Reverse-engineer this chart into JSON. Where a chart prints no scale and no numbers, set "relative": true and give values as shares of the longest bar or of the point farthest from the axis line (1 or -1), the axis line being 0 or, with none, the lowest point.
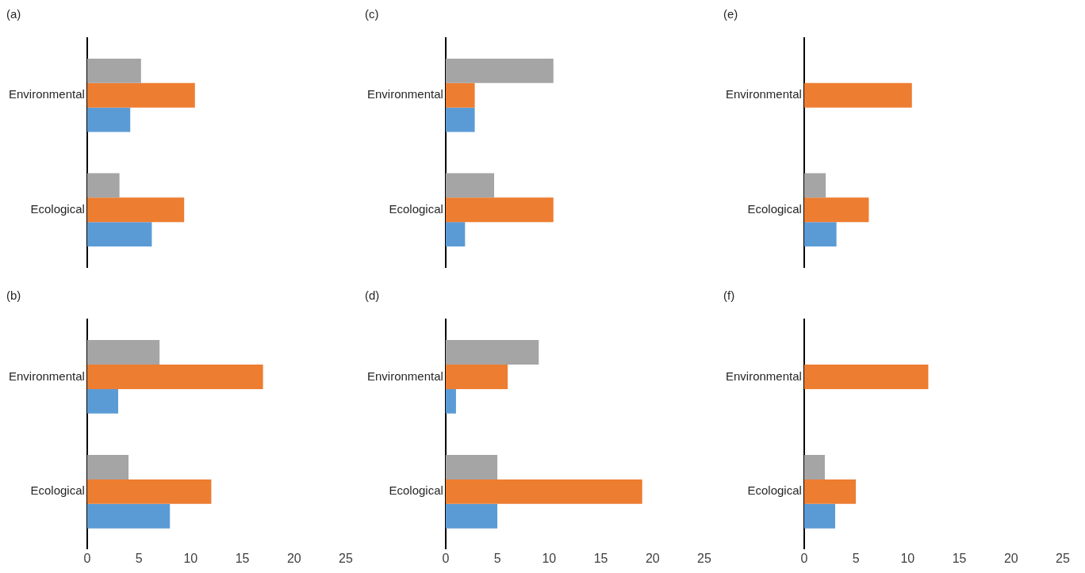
{
  "chart_data": [
    {
      "type": "bar",
      "orientation": "horizontal",
      "relative": true,
      "title": "(a)",
      "categories": [
        "Environmental",
        "Ecological"
      ],
      "series": [
        {
          "color": "#a5a5a5",
          "values": [
            0.5,
            0.3
          ]
        },
        {
          "color": "#ed7d31",
          "values": [
            1.0,
            0.9
          ]
        },
        {
          "color": "#5b9bd5",
          "values": [
            0.4,
            0.6
          ]
        }
      ]
    },
    {
      "type": "bar",
      "orientation": "horizontal",
      "relative": true,
      "title": "(c)",
      "categories": [
        "Environmental",
        "Ecological"
      ],
      "series": [
        {
          "color": "#a5a5a5",
          "values": [
            1.0,
            0.45
          ]
        },
        {
          "color": "#ed7d31",
          "values": [
            0.27,
            1.0
          ]
        },
        {
          "color": "#5b9bd5",
          "values": [
            0.27,
            0.18
          ]
        }
      ]
    },
    {
      "type": "bar",
      "orientation": "horizontal",
      "relative": true,
      "title": "(e)",
      "categories": [
        "Environmental",
        "Ecological"
      ],
      "series": [
        {
          "color": "#a5a5a5",
          "values": [
            0,
            0.2
          ]
        },
        {
          "color": "#ed7d31",
          "values": [
            1.0,
            0.6
          ]
        },
        {
          "color": "#5b9bd5",
          "values": [
            0,
            0.3
          ]
        }
      ]
    },
    {
      "type": "bar",
      "orientation": "horizontal",
      "title": "(b)",
      "categories": [
        "Environmental",
        "Ecological"
      ],
      "xlim": [
        0,
        25
      ],
      "xticks": [
        0,
        5,
        10,
        15,
        20,
        25
      ],
      "series": [
        {
          "color": "#a5a5a5",
          "values": [
            7,
            4
          ]
        },
        {
          "color": "#ed7d31",
          "values": [
            17,
            12
          ]
        },
        {
          "color": "#5b9bd5",
          "values": [
            3,
            8
          ]
        }
      ]
    },
    {
      "type": "bar",
      "orientation": "horizontal",
      "title": "(d)",
      "categories": [
        "Environmental",
        "Ecological"
      ],
      "xlim": [
        0,
        25
      ],
      "xticks": [
        0,
        5,
        10,
        15,
        20,
        25
      ],
      "series": [
        {
          "color": "#a5a5a5",
          "values": [
            9,
            5
          ]
        },
        {
          "color": "#ed7d31",
          "values": [
            6,
            19
          ]
        },
        {
          "color": "#5b9bd5",
          "values": [
            1,
            5
          ]
        }
      ]
    },
    {
      "type": "bar",
      "orientation": "horizontal",
      "title": "(f)",
      "categories": [
        "Environmental",
        "Ecological"
      ],
      "xlim": [
        0,
        25
      ],
      "xticks": [
        0,
        5,
        10,
        15,
        20,
        25
      ],
      "series": [
        {
          "color": "#a5a5a5",
          "values": [
            0,
            2
          ]
        },
        {
          "color": "#ed7d31",
          "values": [
            12,
            5
          ]
        },
        {
          "color": "#5b9bd5",
          "values": [
            0,
            3
          ]
        }
      ]
    }
  ]
}
